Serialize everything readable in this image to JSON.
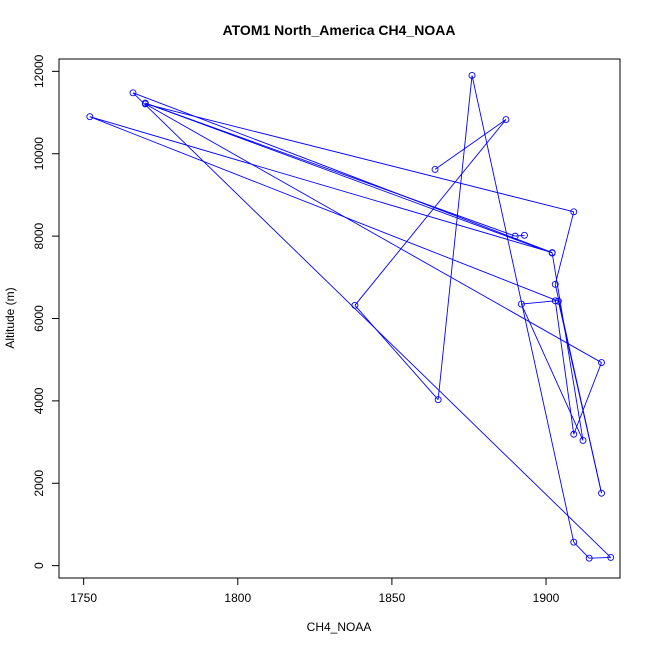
{
  "chart_data": {
    "type": "line",
    "title": "ATOM1 North_America CH4_NOAA",
    "xlabel": "CH4_NOAA",
    "ylabel": "Altitude (m)",
    "xlim": [
      1742,
      1924
    ],
    "ylim": [
      -300,
      12300
    ],
    "xticks": [
      1750,
      1800,
      1850,
      1900
    ],
    "yticks": [
      0,
      2000,
      4000,
      6000,
      8000,
      10000,
      12000
    ],
    "marker": "open-circle",
    "grid": false,
    "colors": {
      "series": "#0000ff",
      "axis": "#000000"
    },
    "series": [
      {
        "x": [
          1864,
          1887,
          1838,
          1865,
          1876,
          1909,
          1914,
          1921,
          1766,
          1902,
          1752,
          1904,
          1918,
          1903,
          1909,
          1770,
          1918,
          1909,
          1903,
          1892,
          1912,
          1902,
          1770,
          1890,
          1893
        ],
        "y": [
          9620,
          10830,
          6320,
          4030,
          11900,
          570,
          180,
          200,
          11480,
          7600,
          10900,
          6420,
          1760,
          6830,
          8590,
          11210,
          4930,
          3190,
          6430,
          6350,
          3040,
          7590,
          11230,
          8000,
          8020
        ]
      }
    ]
  }
}
